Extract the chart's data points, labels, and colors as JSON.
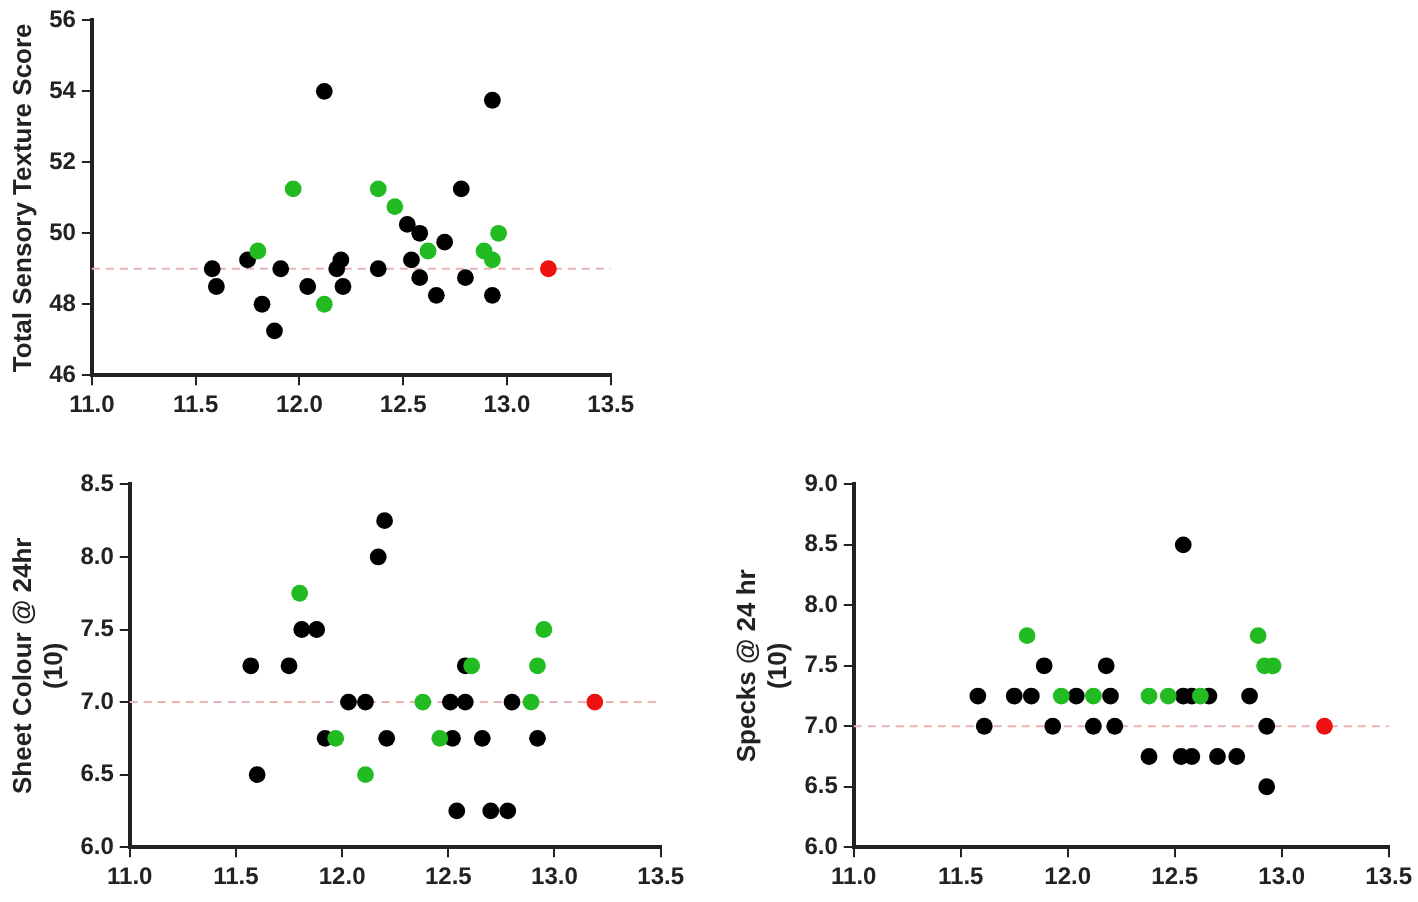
{
  "chart_data": [
    {
      "type": "scatter",
      "ylabel": "Total Sensory Texture Score",
      "marker": "circle",
      "grid": false,
      "legend": false,
      "xlim": [
        11,
        13.5
      ],
      "xticks": [
        {
          "value": 11,
          "label": "11.0"
        },
        {
          "value": 11.5,
          "label": "11.5"
        },
        {
          "value": 12,
          "label": "12.0"
        },
        {
          "value": 12.5,
          "label": "12.5"
        },
        {
          "value": 13,
          "label": "13.0"
        },
        {
          "value": 13.5,
          "label": "13.5"
        }
      ],
      "ylim": [
        46,
        56
      ],
      "yticks": [
        46,
        48,
        50,
        52,
        54,
        56
      ],
      "ref_lines": [
        {
          "axis": "y",
          "value": 49,
          "color": "#e8b4b4",
          "line_style": "dashed"
        }
      ],
      "series": [
        {
          "color": "#000000",
          "x": [
            11.58,
            11.6,
            11.75,
            11.82,
            11.88,
            11.91,
            12.04,
            12.12,
            12.18,
            12.2,
            12.21,
            12.38,
            12.52,
            12.54,
            12.58,
            12.58,
            12.66,
            12.7,
            12.78,
            12.8,
            12.93,
            12.93
          ],
          "values": [
            49,
            48.5,
            49.25,
            48,
            47.25,
            49,
            48.5,
            54,
            49,
            49.25,
            48.5,
            49,
            50.25,
            49.25,
            50,
            48.75,
            48.25,
            49.75,
            51.25,
            48.75,
            53.75,
            48.25
          ]
        },
        {
          "color": "#22bb22",
          "x": [
            11.8,
            11.97,
            12.12,
            12.38,
            12.46,
            12.62,
            12.89,
            12.93,
            12.96
          ],
          "values": [
            49.5,
            51.25,
            48,
            51.25,
            50.75,
            49.5,
            49.5,
            49.25,
            50
          ]
        },
        {
          "color": "#ee1111",
          "x": [
            13.2
          ],
          "values": [
            49
          ]
        }
      ]
    },
    {
      "type": "scatter",
      "ylabel": "Sheet Colour @ 24hr\n(10)",
      "marker": "circle",
      "grid": false,
      "legend": false,
      "xlim": [
        11,
        13.5
      ],
      "xticks": [
        {
          "value": 11,
          "label": "11.0"
        },
        {
          "value": 11.5,
          "label": "11.5"
        },
        {
          "value": 12,
          "label": "12.0"
        },
        {
          "value": 12.5,
          "label": "12.5"
        },
        {
          "value": 13,
          "label": "13.0"
        },
        {
          "value": 13.5,
          "label": "13.5"
        }
      ],
      "ylim": [
        6,
        8.5
      ],
      "yticks": [
        {
          "value": 6,
          "label": "6.0"
        },
        {
          "value": 6.5,
          "label": "6.5"
        },
        {
          "value": 7,
          "label": "7.0"
        },
        {
          "value": 7.5,
          "label": "7.5"
        },
        {
          "value": 8,
          "label": "8.0"
        },
        {
          "value": 8.5,
          "label": "8.5"
        }
      ],
      "ref_lines": [
        {
          "axis": "y",
          "value": 7,
          "color": "#e8b4b4",
          "line_style": "dashed"
        }
      ],
      "series": [
        {
          "color": "#000000",
          "x": [
            11.57,
            11.6,
            11.75,
            11.81,
            11.88,
            11.92,
            12.03,
            12.11,
            12.17,
            12.2,
            12.21,
            12.51,
            12.52,
            12.54,
            12.58,
            12.58,
            12.66,
            12.7,
            12.78,
            12.8,
            12.92
          ],
          "values": [
            7.25,
            6.5,
            7.25,
            7.5,
            7.5,
            6.75,
            7,
            7,
            8,
            8.25,
            6.75,
            7,
            6.75,
            6.25,
            7,
            7.25,
            6.75,
            6.25,
            6.25,
            7,
            6.75
          ]
        },
        {
          "color": "#22bb22",
          "x": [
            11.8,
            11.97,
            12.11,
            12.38,
            12.46,
            12.61,
            12.89,
            12.92,
            12.95
          ],
          "values": [
            7.75,
            6.75,
            6.5,
            7,
            6.75,
            7.25,
            7,
            7.25,
            7.5
          ]
        },
        {
          "color": "#ee1111",
          "x": [
            13.19
          ],
          "values": [
            7
          ]
        }
      ]
    },
    {
      "type": "scatter",
      "ylabel": "Specks @ 24 hr\n(10)",
      "marker": "circle",
      "grid": false,
      "legend": false,
      "xlim": [
        11,
        13.5
      ],
      "xticks": [
        {
          "value": 11,
          "label": "11.0"
        },
        {
          "value": 11.5,
          "label": "11.5"
        },
        {
          "value": 12,
          "label": "12.0"
        },
        {
          "value": 12.5,
          "label": "12.5"
        },
        {
          "value": 13,
          "label": "13.0"
        },
        {
          "value": 13.5,
          "label": "13.5"
        }
      ],
      "ylim": [
        6,
        9
      ],
      "yticks": [
        {
          "value": 6,
          "label": "6.0"
        },
        {
          "value": 6.5,
          "label": "6.5"
        },
        {
          "value": 7,
          "label": "7.0"
        },
        {
          "value": 7.5,
          "label": "7.5"
        },
        {
          "value": 8,
          "label": "8.0"
        },
        {
          "value": 8.5,
          "label": "8.5"
        },
        {
          "value": 9,
          "label": "9.0"
        }
      ],
      "ref_lines": [
        {
          "axis": "y",
          "value": 7,
          "color": "#e8b4b4",
          "line_style": "dashed"
        }
      ],
      "series": [
        {
          "color": "#000000",
          "x": [
            11.58,
            11.61,
            11.75,
            11.83,
            11.89,
            11.93,
            12.04,
            12.12,
            12.18,
            12.2,
            12.22,
            12.38,
            12.53,
            12.54,
            12.54,
            12.58,
            12.58,
            12.66,
            12.7,
            12.79,
            12.85,
            12.93,
            12.93
          ],
          "values": [
            7.25,
            7,
            7.25,
            7.25,
            7.5,
            7,
            7.25,
            7,
            7.5,
            7.25,
            7,
            6.75,
            6.75,
            8.5,
            7.25,
            6.75,
            7.25,
            7.25,
            6.75,
            6.75,
            7.25,
            7,
            6.5
          ]
        },
        {
          "color": "#22bb22",
          "x": [
            11.81,
            11.97,
            12.12,
            12.38,
            12.47,
            12.62,
            12.89,
            12.92,
            12.96
          ],
          "values": [
            7.75,
            7.25,
            7.25,
            7.25,
            7.25,
            7.25,
            7.75,
            7.5,
            7.5
          ]
        },
        {
          "color": "#ee1111",
          "x": [
            13.2
          ],
          "values": [
            7
          ]
        }
      ]
    }
  ]
}
